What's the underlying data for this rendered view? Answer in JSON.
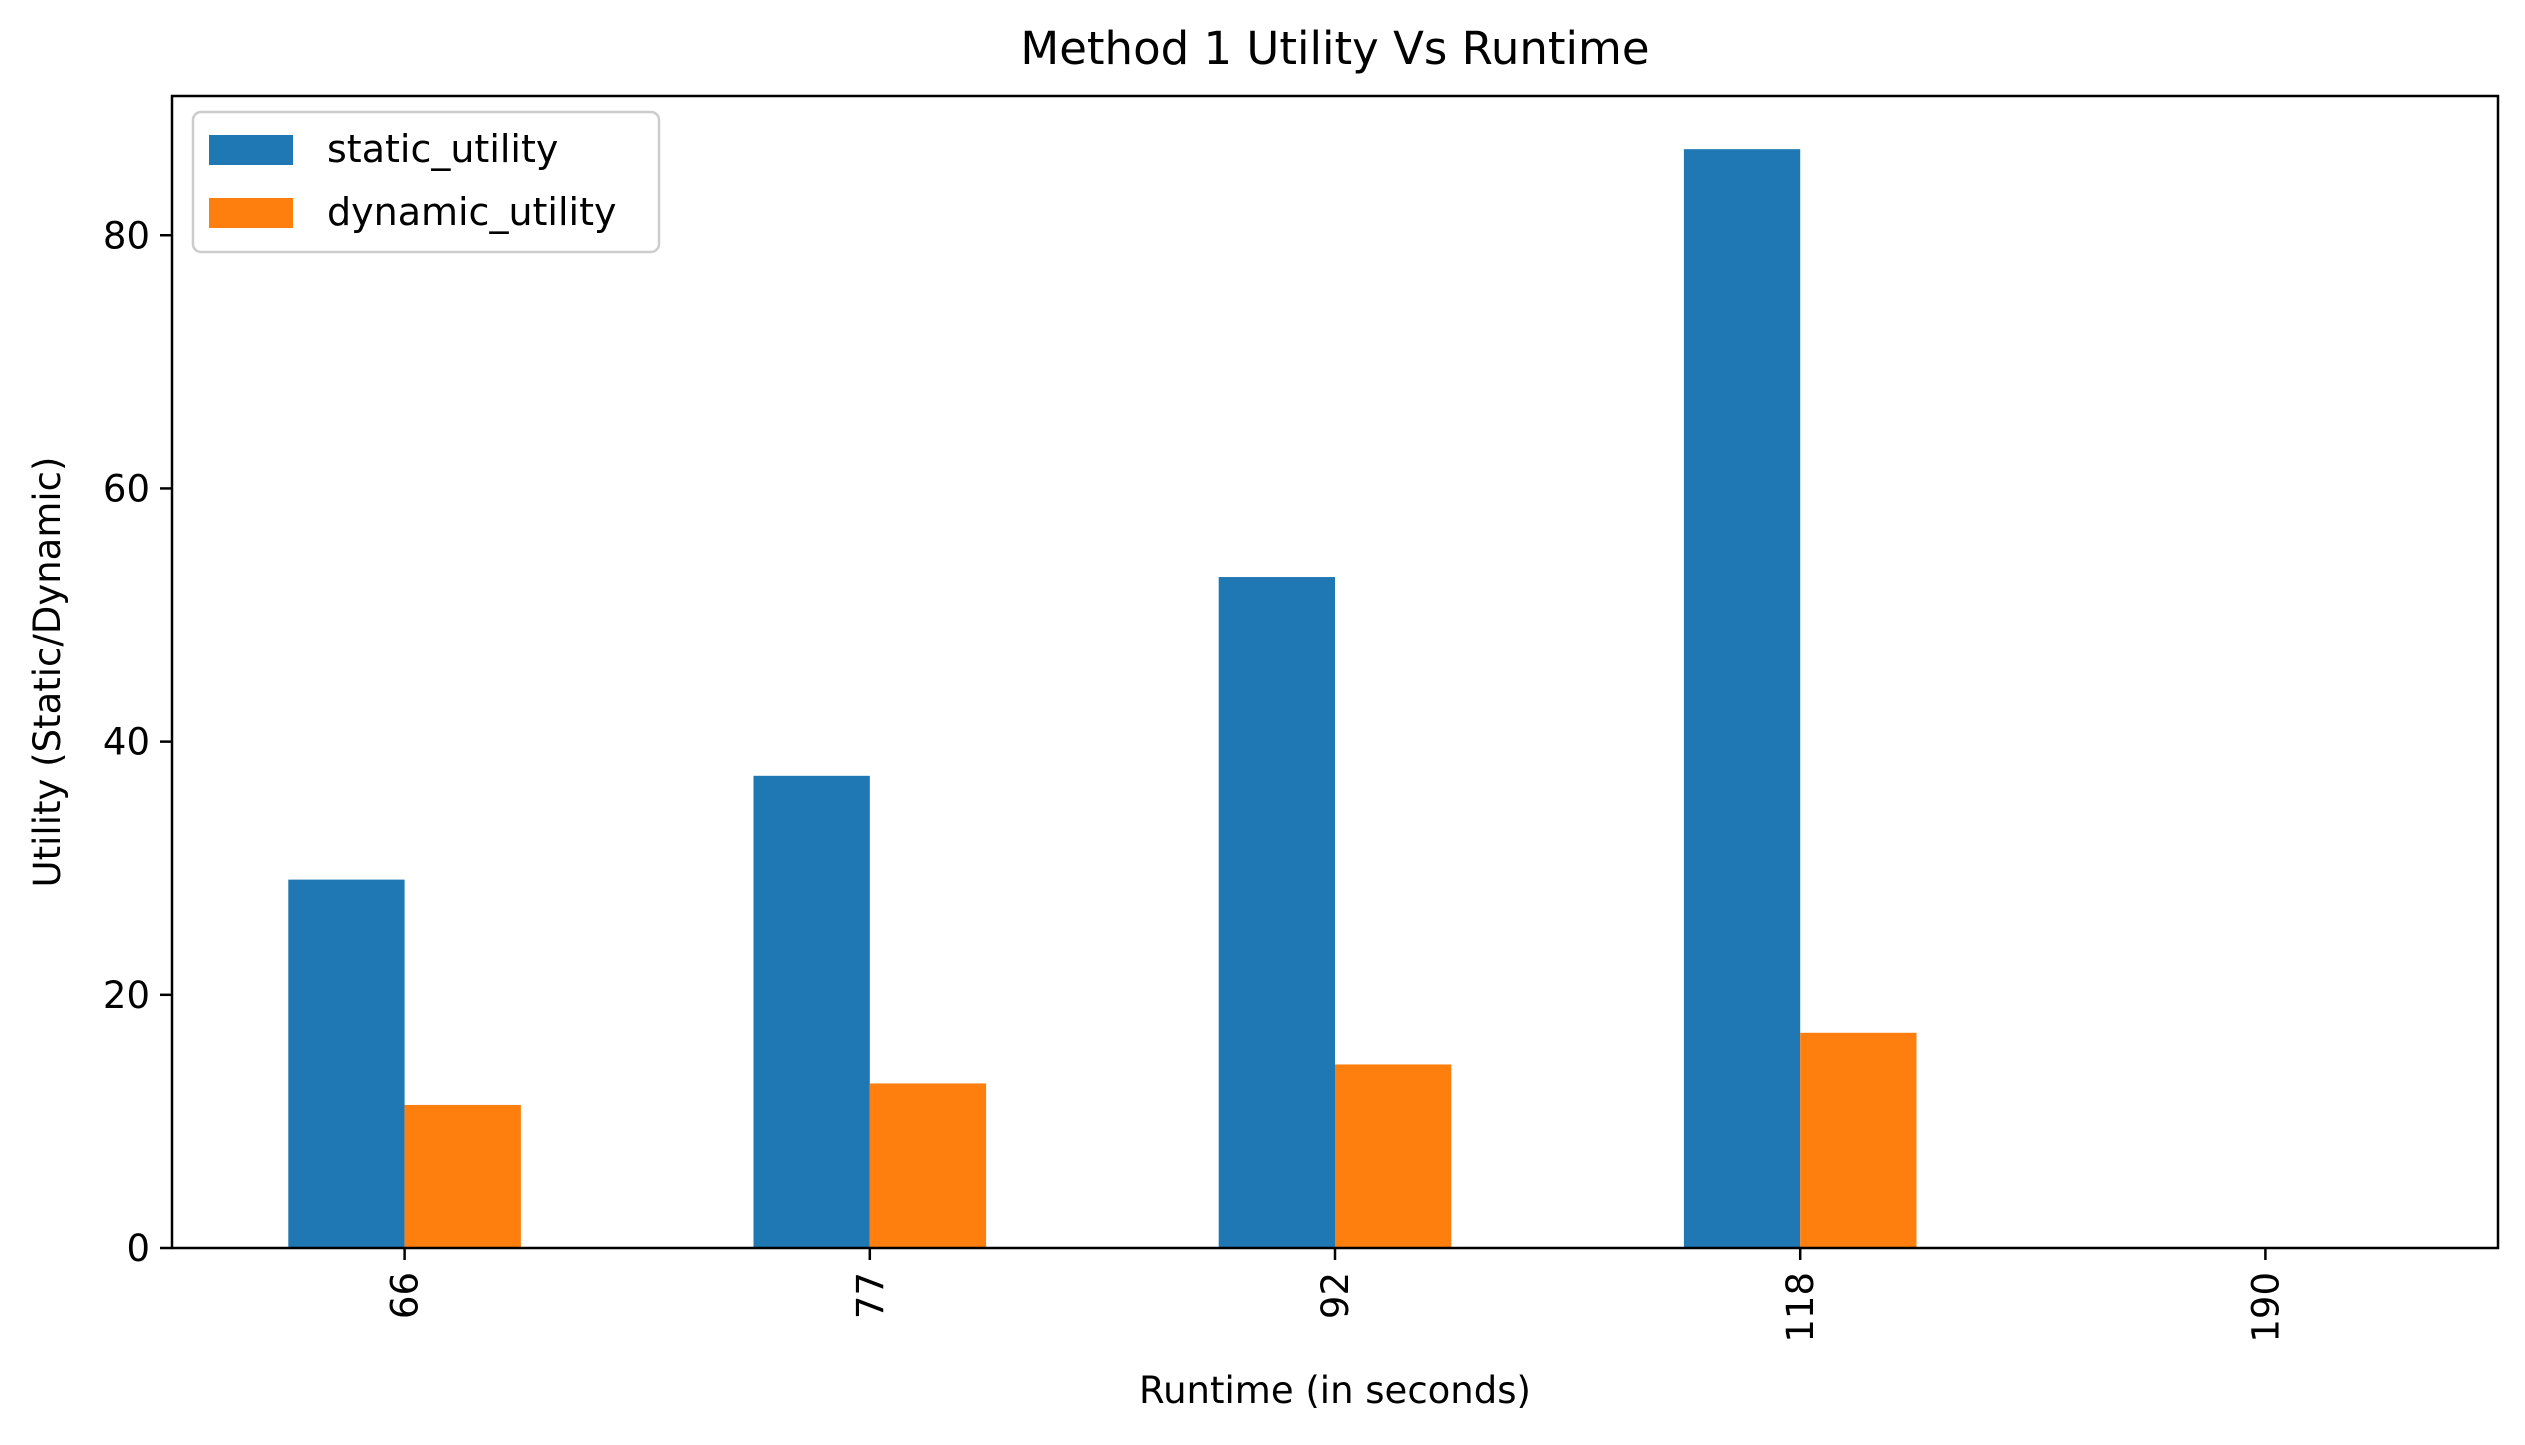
{
  "chart_data": {
    "type": "bar",
    "title": "Method 1 Utility Vs Runtime",
    "xlabel": "Runtime (in seconds)",
    "ylabel": "Utility (Static/Dynamic)",
    "categories": [
      "66",
      "77",
      "92",
      "118",
      "190"
    ],
    "series": [
      {
        "name": "static_utility",
        "color": "#1f77b4",
        "values": [
          29.1,
          37.3,
          53.0,
          86.8,
          0
        ]
      },
      {
        "name": "dynamic_utility",
        "color": "#ff7f0e",
        "values": [
          11.3,
          13.0,
          14.5,
          17.0,
          0
        ]
      }
    ],
    "ylim": [
      0,
      91
    ],
    "yticks": [
      0,
      20,
      40,
      60,
      80
    ],
    "xtick_rotation": 90,
    "legend_position": "upper-left",
    "grid": false
  }
}
